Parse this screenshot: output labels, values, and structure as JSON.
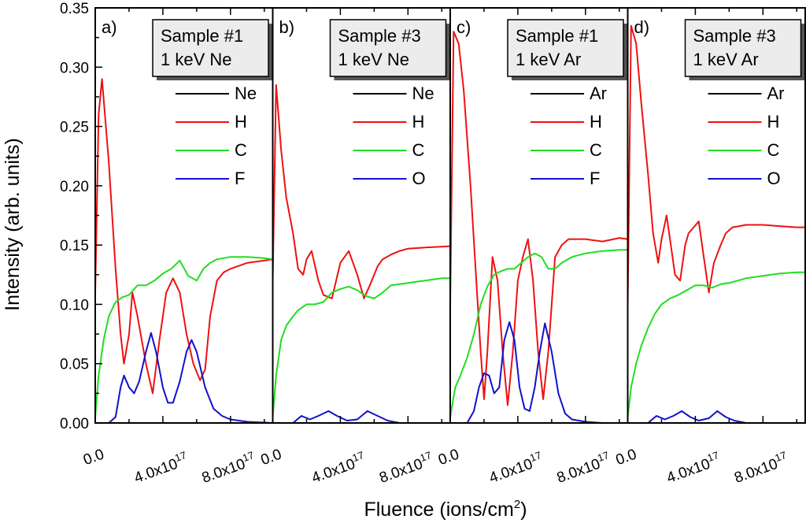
{
  "chart_data": {
    "type": "line",
    "ylabel": "Intensity (arb. units)",
    "xlabel": "Fluence (ions/cm",
    "xlabel_sup": "2",
    "xlabel_tail": ")",
    "ylim": [
      0.0,
      0.35
    ],
    "xlim": [
      0.0,
      1.05e+18
    ],
    "yticks": [
      "0.00",
      "0.05",
      "0.10",
      "0.15",
      "0.20",
      "0.25",
      "0.30",
      "0.35"
    ],
    "xtick_parts": [
      {
        "pre": "0.0",
        "sup": ""
      },
      {
        "pre": "4.0x10",
        "sup": "17"
      },
      {
        "pre": "8.0x10",
        "sup": "17"
      }
    ],
    "colors": {
      "black": "#000000",
      "red": "#ee1111",
      "green": "#22dd22",
      "blue": "#1111cc"
    },
    "panels": [
      {
        "letter": "a)",
        "box": [
          "Sample #1",
          "1 keV Ne"
        ],
        "legend": [
          {
            "label": "Ne",
            "color": "black"
          },
          {
            "label": "H",
            "color": "red"
          },
          {
            "label": "C",
            "color": "green"
          },
          {
            "label": "F",
            "color": "blue"
          }
        ],
        "series": [
          {
            "name": "H",
            "color": "red",
            "x": [
              0,
              0.02,
              0.04,
              0.08,
              0.12,
              0.15,
              0.17,
              0.2,
              0.22,
              0.25,
              0.3,
              0.34,
              0.38,
              0.42,
              0.46,
              0.5,
              0.54,
              0.58,
              0.62,
              0.65,
              0.68,
              0.72,
              0.76,
              0.8,
              0.9,
              1.0,
              1.05
            ],
            "y": [
              0.11,
              0.26,
              0.29,
              0.22,
              0.13,
              0.075,
              0.05,
              0.075,
              0.11,
              0.09,
              0.05,
              0.025,
              0.07,
              0.11,
              0.122,
              0.11,
              0.075,
              0.05,
              0.036,
              0.045,
              0.09,
              0.12,
              0.127,
              0.13,
              0.135,
              0.137,
              0.138
            ]
          },
          {
            "name": "C",
            "color": "green",
            "x": [
              0,
              0.02,
              0.05,
              0.08,
              0.12,
              0.16,
              0.2,
              0.25,
              0.3,
              0.35,
              0.4,
              0.45,
              0.5,
              0.55,
              0.6,
              0.64,
              0.68,
              0.72,
              0.8,
              0.9,
              1.0,
              1.05
            ],
            "y": [
              0.005,
              0.04,
              0.07,
              0.09,
              0.102,
              0.106,
              0.108,
              0.116,
              0.116,
              0.12,
              0.126,
              0.13,
              0.137,
              0.124,
              0.12,
              0.13,
              0.135,
              0.138,
              0.14,
              0.14,
              0.139,
              0.138
            ]
          },
          {
            "name": "F",
            "color": "blue",
            "x": [
              0,
              0.08,
              0.12,
              0.15,
              0.17,
              0.2,
              0.23,
              0.26,
              0.3,
              0.33,
              0.36,
              0.4,
              0.43,
              0.46,
              0.5,
              0.54,
              0.57,
              0.6,
              0.65,
              0.7,
              0.75,
              0.8,
              0.9,
              1.05
            ],
            "y": [
              0.0,
              0.0,
              0.005,
              0.03,
              0.04,
              0.03,
              0.025,
              0.035,
              0.06,
              0.076,
              0.06,
              0.03,
              0.017,
              0.017,
              0.035,
              0.06,
              0.07,
              0.06,
              0.03,
              0.012,
              0.006,
              0.003,
              0.001,
              0.0
            ]
          }
        ]
      },
      {
        "letter": "b)",
        "box": [
          "Sample #3",
          "1 keV Ne"
        ],
        "legend": [
          {
            "label": "Ne",
            "color": "black"
          },
          {
            "label": "H",
            "color": "red"
          },
          {
            "label": "C",
            "color": "green"
          },
          {
            "label": "O",
            "color": "blue"
          }
        ],
        "series": [
          {
            "name": "H",
            "color": "red",
            "x": [
              0,
              0.02,
              0.05,
              0.08,
              0.12,
              0.15,
              0.18,
              0.2,
              0.23,
              0.27,
              0.3,
              0.35,
              0.4,
              0.45,
              0.5,
              0.54,
              0.58,
              0.62,
              0.65,
              0.7,
              0.75,
              0.8,
              0.9,
              1.05
            ],
            "y": [
              0.12,
              0.285,
              0.23,
              0.19,
              0.16,
              0.13,
              0.125,
              0.138,
              0.145,
              0.12,
              0.108,
              0.105,
              0.135,
              0.145,
              0.125,
              0.105,
              0.118,
              0.132,
              0.138,
              0.142,
              0.145,
              0.147,
              0.148,
              0.149
            ]
          },
          {
            "name": "C",
            "color": "green",
            "x": [
              0,
              0.02,
              0.05,
              0.08,
              0.12,
              0.15,
              0.2,
              0.25,
              0.3,
              0.35,
              0.4,
              0.45,
              0.5,
              0.55,
              0.6,
              0.65,
              0.7,
              0.8,
              0.9,
              1.0,
              1.05
            ],
            "y": [
              0.005,
              0.04,
              0.07,
              0.082,
              0.09,
              0.095,
              0.1,
              0.1,
              0.102,
              0.11,
              0.113,
              0.115,
              0.112,
              0.107,
              0.105,
              0.11,
              0.116,
              0.118,
              0.12,
              0.122,
              0.122
            ]
          },
          {
            "name": "O",
            "color": "blue",
            "x": [
              0,
              0.12,
              0.17,
              0.22,
              0.27,
              0.33,
              0.38,
              0.44,
              0.5,
              0.56,
              0.62,
              0.68,
              0.75,
              0.85,
              1.05
            ],
            "y": [
              0.0,
              0.0,
              0.006,
              0.003,
              0.006,
              0.01,
              0.006,
              0.002,
              0.003,
              0.01,
              0.006,
              0.002,
              0.0,
              0.0,
              0.0
            ]
          }
        ]
      },
      {
        "letter": "c)",
        "box": [
          "Sample #1",
          "1 keV Ar"
        ],
        "legend": [
          {
            "label": "Ar",
            "color": "black"
          },
          {
            "label": "H",
            "color": "red"
          },
          {
            "label": "C",
            "color": "green"
          },
          {
            "label": "F",
            "color": "blue"
          }
        ],
        "series": [
          {
            "name": "H",
            "color": "red",
            "x": [
              0,
              0.02,
              0.05,
              0.08,
              0.12,
              0.15,
              0.18,
              0.2,
              0.22,
              0.25,
              0.28,
              0.31,
              0.34,
              0.37,
              0.4,
              0.43,
              0.46,
              0.49,
              0.52,
              0.55,
              0.58,
              0.62,
              0.66,
              0.7,
              0.8,
              0.9,
              1.0,
              1.05
            ],
            "y": [
              0.1,
              0.33,
              0.32,
              0.28,
              0.2,
              0.13,
              0.06,
              0.02,
              0.06,
              0.14,
              0.12,
              0.06,
              0.015,
              0.06,
              0.12,
              0.14,
              0.155,
              0.12,
              0.06,
              0.02,
              0.06,
              0.14,
              0.15,
              0.155,
              0.155,
              0.153,
              0.156,
              0.155
            ]
          },
          {
            "name": "C",
            "color": "green",
            "x": [
              0,
              0.03,
              0.06,
              0.1,
              0.14,
              0.18,
              0.22,
              0.26,
              0.3,
              0.34,
              0.38,
              0.42,
              0.46,
              0.5,
              0.54,
              0.58,
              0.62,
              0.66,
              0.72,
              0.8,
              0.9,
              1.0,
              1.05
            ],
            "y": [
              0.005,
              0.03,
              0.04,
              0.055,
              0.075,
              0.1,
              0.115,
              0.125,
              0.128,
              0.13,
              0.13,
              0.135,
              0.14,
              0.143,
              0.14,
              0.13,
              0.13,
              0.135,
              0.14,
              0.143,
              0.145,
              0.146,
              0.146
            ]
          },
          {
            "name": "F",
            "color": "blue",
            "x": [
              0,
              0.1,
              0.14,
              0.17,
              0.2,
              0.23,
              0.26,
              0.29,
              0.32,
              0.35,
              0.38,
              0.41,
              0.44,
              0.47,
              0.5,
              0.53,
              0.56,
              0.6,
              0.64,
              0.68,
              0.72,
              0.8,
              0.9,
              1.05
            ],
            "y": [
              0.0,
              0.0,
              0.01,
              0.03,
              0.042,
              0.04,
              0.025,
              0.03,
              0.07,
              0.085,
              0.07,
              0.03,
              0.012,
              0.01,
              0.03,
              0.06,
              0.084,
              0.06,
              0.025,
              0.008,
              0.003,
              0.001,
              0.0,
              0.0
            ]
          }
        ]
      },
      {
        "letter": "d)",
        "box": [
          "Sample #3",
          "1 keV Ar"
        ],
        "legend": [
          {
            "label": "Ar",
            "color": "black"
          },
          {
            "label": "H",
            "color": "red"
          },
          {
            "label": "C",
            "color": "green"
          },
          {
            "label": "O",
            "color": "blue"
          }
        ],
        "series": [
          {
            "name": "H",
            "color": "red",
            "x": [
              0,
              0.02,
              0.05,
              0.08,
              0.12,
              0.15,
              0.18,
              0.2,
              0.23,
              0.25,
              0.28,
              0.31,
              0.34,
              0.36,
              0.39,
              0.42,
              0.45,
              0.48,
              0.51,
              0.55,
              0.58,
              0.62,
              0.66,
              0.7,
              0.8,
              0.9,
              1.0,
              1.05
            ],
            "y": [
              0.1,
              0.335,
              0.32,
              0.27,
              0.21,
              0.16,
              0.135,
              0.155,
              0.175,
              0.155,
              0.125,
              0.12,
              0.15,
              0.16,
              0.165,
              0.17,
              0.14,
              0.11,
              0.135,
              0.15,
              0.16,
              0.165,
              0.166,
              0.167,
              0.167,
              0.166,
              0.165,
              0.165
            ]
          },
          {
            "name": "C",
            "color": "green",
            "x": [
              0,
              0.02,
              0.05,
              0.08,
              0.12,
              0.16,
              0.2,
              0.25,
              0.3,
              0.35,
              0.4,
              0.45,
              0.5,
              0.55,
              0.6,
              0.65,
              0.7,
              0.8,
              0.9,
              1.0,
              1.05
            ],
            "y": [
              0.005,
              0.03,
              0.05,
              0.065,
              0.08,
              0.092,
              0.1,
              0.105,
              0.108,
              0.112,
              0.116,
              0.116,
              0.114,
              0.117,
              0.118,
              0.12,
              0.122,
              0.124,
              0.126,
              0.127,
              0.127
            ]
          },
          {
            "name": "O",
            "color": "blue",
            "x": [
              0,
              0.12,
              0.17,
              0.22,
              0.27,
              0.32,
              0.37,
              0.42,
              0.48,
              0.53,
              0.58,
              0.63,
              0.7,
              0.8,
              1.05
            ],
            "y": [
              0.0,
              0.0,
              0.006,
              0.003,
              0.006,
              0.01,
              0.005,
              0.002,
              0.004,
              0.01,
              0.005,
              0.002,
              0.0,
              0.0,
              0.0
            ]
          }
        ]
      }
    ]
  }
}
